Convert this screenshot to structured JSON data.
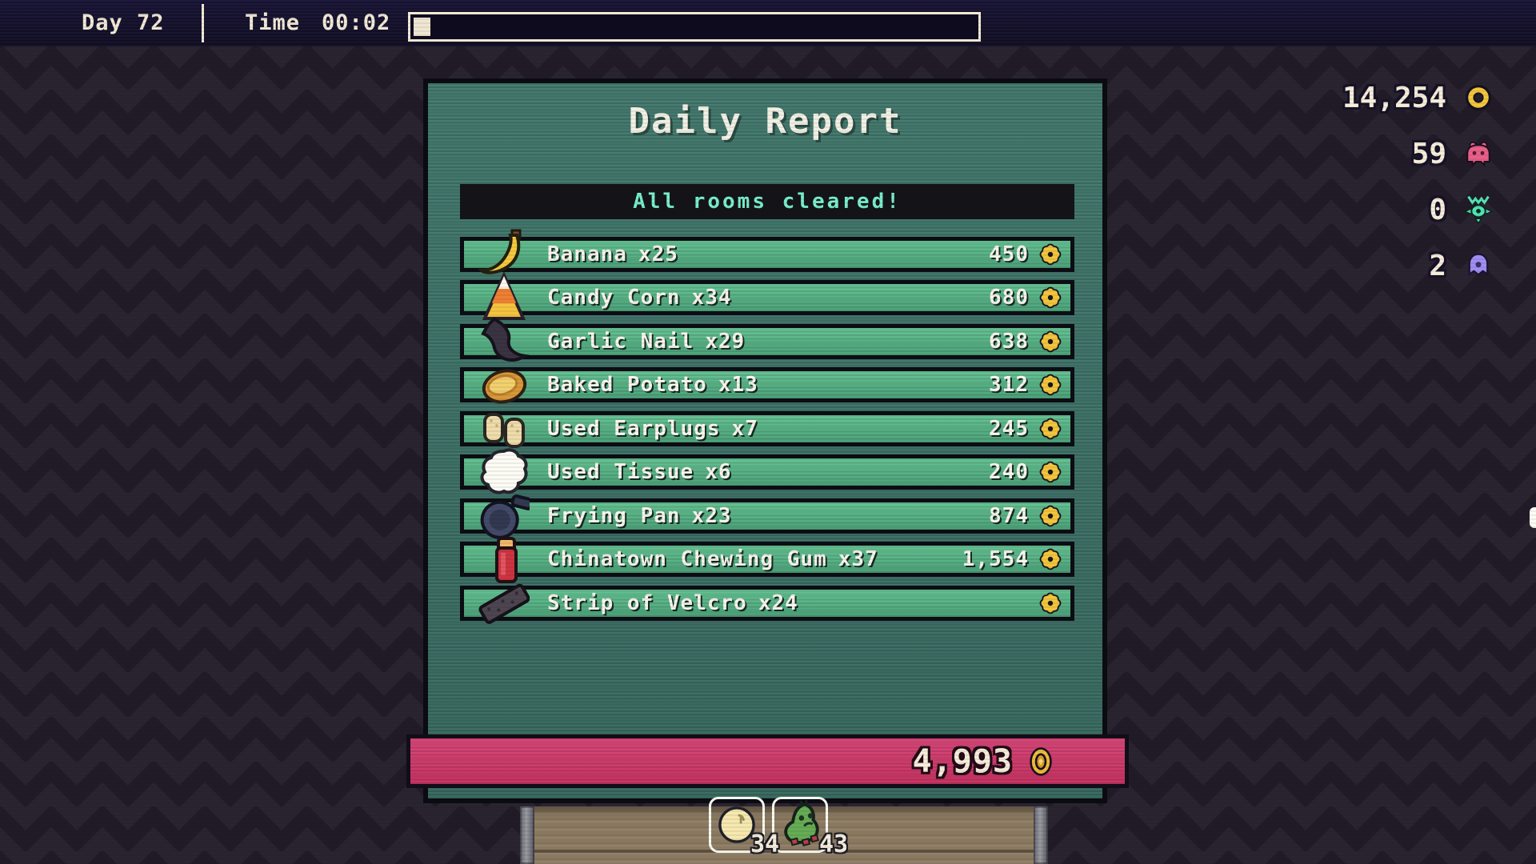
{
  "top_bar": {
    "day_label": "Day 72",
    "time_label": "Time",
    "time_value": "00:02",
    "progress_percent": 3
  },
  "hud": {
    "counters": [
      {
        "icon": "coin-icon",
        "value": "14,254",
        "color": "#f2c53c"
      },
      {
        "icon": "pink-creature-icon",
        "value": "59",
        "color": "#ea6088"
      },
      {
        "icon": "teal-creature-icon",
        "value": "0",
        "color": "#52e6b5"
      },
      {
        "icon": "purple-creature-icon",
        "value": "2",
        "color": "#a08ef0"
      }
    ]
  },
  "report": {
    "title": "Daily Report",
    "banner": "All rooms cleared!",
    "items": [
      {
        "icon": "banana-icon",
        "name": "Banana",
        "count": "x25",
        "value": "450"
      },
      {
        "icon": "candy-corn-icon",
        "name": "Candy Corn",
        "count": "x34",
        "value": "680"
      },
      {
        "icon": "garlic-nail-icon",
        "name": "Garlic Nail",
        "count": "x29",
        "value": "638"
      },
      {
        "icon": "baked-potato-icon",
        "name": "Baked Potato",
        "count": "x13",
        "value": "312"
      },
      {
        "icon": "used-earplugs-icon",
        "name": "Used Earplugs",
        "count": "x7",
        "value": "245"
      },
      {
        "icon": "used-tissue-icon",
        "name": "Used Tissue",
        "count": "x6",
        "value": "240"
      },
      {
        "icon": "frying-pan-icon",
        "name": "Frying Pan",
        "count": "x23",
        "value": "874"
      },
      {
        "icon": "chewing-gum-icon",
        "name": "Chinatown Chewing Gum",
        "count": "x37",
        "value": "1,554"
      },
      {
        "icon": "velcro-icon",
        "name": "Strip of Velcro",
        "count": "x24",
        "value": ""
      }
    ],
    "total_value": "4,993"
  },
  "inventory": {
    "slots": [
      {
        "icon": "orb-icon",
        "count": "34"
      },
      {
        "icon": "caterpillar-icon",
        "count": "43"
      }
    ]
  },
  "colors": {
    "coin_gold": "#f2c53c",
    "banner_text": "#79efc9",
    "total_bar_pink": "#d43c6f",
    "row_green": "#5abb8a",
    "panel_teal": "#3e7168",
    "background_purple": "#211b27",
    "topbar_navy": "#15112a",
    "cream_text": "#f3ead6"
  }
}
